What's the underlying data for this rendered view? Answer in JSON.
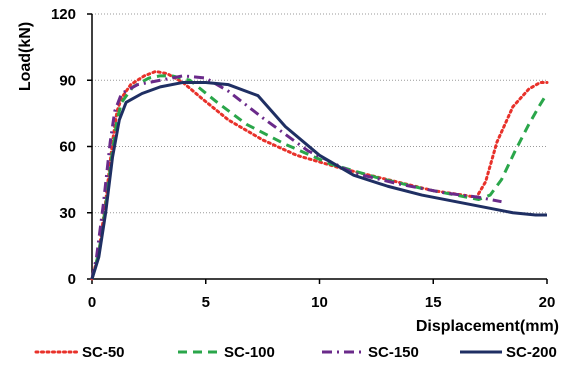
{
  "chart_data": {
    "type": "line",
    "title": "",
    "xlabel": "Displacement(mm)",
    "ylabel": "Load(kN)",
    "xlim": [
      0,
      20
    ],
    "ylim": [
      0,
      120
    ],
    "x_ticks": [
      0,
      5,
      10,
      15,
      20
    ],
    "y_ticks": [
      0,
      30,
      60,
      90,
      120
    ],
    "grid": "horizontal-dotted",
    "legend_position": "bottom",
    "series": [
      {
        "name": "SC-50",
        "color": "#e8312a",
        "dash": "dotted",
        "points": [
          [
            0,
            0
          ],
          [
            0.3,
            12
          ],
          [
            0.6,
            35
          ],
          [
            0.9,
            62
          ],
          [
            1.1,
            76
          ],
          [
            1.3,
            82
          ],
          [
            1.7,
            88
          ],
          [
            2.3,
            92
          ],
          [
            2.8,
            94
          ],
          [
            3.3,
            93
          ],
          [
            4.0,
            89
          ],
          [
            4.8,
            82
          ],
          [
            6.0,
            72
          ],
          [
            7.5,
            63
          ],
          [
            9.0,
            56
          ],
          [
            11.0,
            50
          ],
          [
            13.0,
            45
          ],
          [
            15.0,
            40
          ],
          [
            16.3,
            38
          ],
          [
            16.9,
            37
          ],
          [
            17.3,
            44
          ],
          [
            17.8,
            62
          ],
          [
            18.5,
            78
          ],
          [
            19.2,
            86
          ],
          [
            19.7,
            89
          ],
          [
            20.0,
            89
          ]
        ]
      },
      {
        "name": "SC-100",
        "color": "#2aa64a",
        "dash": "dashed",
        "points": [
          [
            0,
            0
          ],
          [
            0.3,
            12
          ],
          [
            0.6,
            33
          ],
          [
            0.9,
            58
          ],
          [
            1.1,
            72
          ],
          [
            1.3,
            80
          ],
          [
            1.8,
            87
          ],
          [
            2.5,
            91
          ],
          [
            3.0,
            92
          ],
          [
            3.5,
            92
          ],
          [
            4.3,
            90
          ],
          [
            5.5,
            80
          ],
          [
            6.8,
            70
          ],
          [
            8.5,
            61
          ],
          [
            10.5,
            52
          ],
          [
            12.5,
            46
          ],
          [
            14.5,
            41
          ],
          [
            16.0,
            38
          ],
          [
            17.0,
            36
          ],
          [
            17.5,
            38
          ],
          [
            18.0,
            45
          ],
          [
            18.6,
            58
          ],
          [
            19.2,
            70
          ],
          [
            19.7,
            79
          ],
          [
            20.0,
            84
          ]
        ]
      },
      {
        "name": "SC-150",
        "color": "#6a2a8a",
        "dash": "dashdot",
        "points": [
          [
            0,
            0
          ],
          [
            0.2,
            10
          ],
          [
            0.5,
            34
          ],
          [
            0.8,
            62
          ],
          [
            1.0,
            76
          ],
          [
            1.3,
            84
          ],
          [
            2.0,
            88
          ],
          [
            3.0,
            90
          ],
          [
            4.0,
            92
          ],
          [
            5.0,
            91
          ],
          [
            6.0,
            85
          ],
          [
            7.5,
            73
          ],
          [
            9.5,
            58
          ],
          [
            11.5,
            48
          ],
          [
            13.5,
            43
          ],
          [
            15.5,
            39
          ],
          [
            17.0,
            37
          ],
          [
            18.0,
            35
          ]
        ]
      },
      {
        "name": "SC-200",
        "color": "#1f2f63",
        "dash": "solid",
        "points": [
          [
            0,
            0
          ],
          [
            0.3,
            10
          ],
          [
            0.6,
            30
          ],
          [
            0.9,
            55
          ],
          [
            1.2,
            72
          ],
          [
            1.5,
            80
          ],
          [
            2.2,
            84
          ],
          [
            3.0,
            87
          ],
          [
            4.0,
            89
          ],
          [
            5.0,
            89
          ],
          [
            6.0,
            88
          ],
          [
            7.3,
            83
          ],
          [
            8.5,
            69
          ],
          [
            10.0,
            56
          ],
          [
            11.5,
            47
          ],
          [
            13.0,
            42
          ],
          [
            14.5,
            38
          ],
          [
            16.0,
            35
          ],
          [
            17.5,
            32
          ],
          [
            18.5,
            30
          ],
          [
            19.5,
            29
          ],
          [
            20.0,
            29
          ]
        ]
      }
    ]
  }
}
